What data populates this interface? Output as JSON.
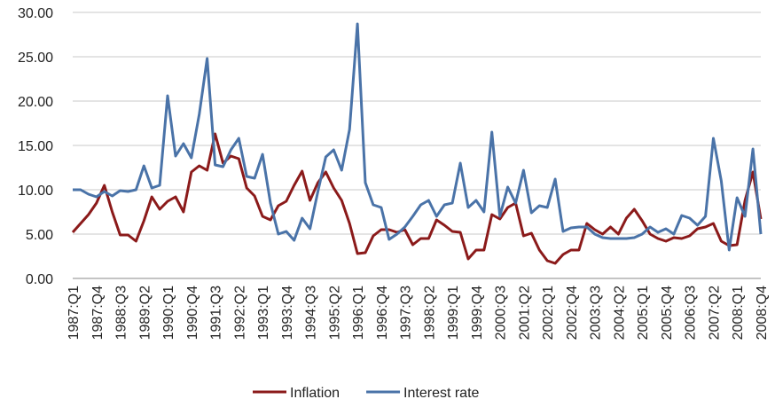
{
  "chart_data": {
    "type": "line",
    "categories": [
      "1987:Q1",
      null,
      null,
      "1987:Q4",
      null,
      null,
      "1988:Q3",
      null,
      null,
      "1989:Q2",
      null,
      null,
      "1990:Q1",
      null,
      null,
      "1990:Q4",
      null,
      null,
      "1991:Q3",
      null,
      null,
      "1992:Q2",
      null,
      null,
      "1993:Q1",
      null,
      null,
      "1993:Q4",
      null,
      null,
      "1994:Q3",
      null,
      null,
      "1995:Q2",
      null,
      null,
      "1996:Q1",
      null,
      null,
      "1996:Q4",
      null,
      null,
      "1997:Q3",
      null,
      null,
      "1998:Q2",
      null,
      null,
      "1999:Q1",
      null,
      null,
      "1999:Q4",
      null,
      null,
      "2000:Q3",
      null,
      null,
      "2001:Q2",
      null,
      null,
      "2002:Q1",
      null,
      null,
      "2002:Q4",
      null,
      null,
      "2003:Q3",
      null,
      null,
      "2004:Q2",
      null,
      null,
      "2005:Q1",
      null,
      null,
      "2005:Q4",
      null,
      null,
      "2006:Q3",
      null,
      null,
      "2007:Q2",
      null,
      null,
      "2008:Q1",
      null,
      null,
      "2008:Q4"
    ],
    "series": [
      {
        "name": "Inflation",
        "color": "#8b1a1a",
        "values": [
          5.2,
          6.2,
          7.2,
          8.5,
          10.5,
          7.5,
          4.9,
          4.9,
          4.2,
          6.5,
          9.2,
          7.8,
          8.7,
          9.2,
          7.5,
          12.0,
          12.7,
          12.2,
          16.3,
          13.0,
          13.8,
          13.5,
          10.2,
          9.3,
          7.0,
          6.6,
          8.2,
          8.7,
          10.5,
          12.1,
          8.8,
          10.8,
          12.0,
          10.2,
          8.8,
          6.2,
          2.8,
          2.9,
          4.8,
          5.5,
          5.5,
          5.2,
          5.5,
          3.8,
          4.5,
          4.5,
          6.6,
          6.0,
          5.3,
          5.2,
          2.2,
          3.2,
          3.2,
          7.2,
          6.7,
          8.0,
          8.5,
          4.8,
          5.1,
          3.2,
          2.0,
          1.7,
          2.7,
          3.2,
          3.2,
          6.2,
          5.5,
          5.0,
          5.8,
          5.0,
          6.8,
          7.8,
          6.5,
          5.0,
          4.5,
          4.2,
          4.6,
          4.5,
          4.8,
          5.6,
          5.8,
          6.2,
          4.2,
          3.7,
          3.8,
          8.8,
          12.0,
          6.7
        ]
      },
      {
        "name": "Interest rate",
        "color": "#4a73a8",
        "values": [
          10.0,
          10.0,
          9.5,
          9.2,
          9.8,
          9.3,
          9.9,
          9.8,
          10.0,
          12.7,
          10.2,
          10.5,
          20.6,
          13.8,
          15.2,
          13.6,
          18.5,
          24.8,
          12.8,
          12.6,
          14.5,
          15.8,
          11.5,
          11.3,
          14.0,
          8.5,
          5.0,
          5.3,
          4.3,
          6.8,
          5.6,
          9.8,
          13.7,
          14.5,
          12.2,
          16.8,
          28.7,
          10.8,
          8.3,
          8.0,
          4.4,
          5.0,
          5.8,
          7.0,
          8.3,
          8.8,
          7.0,
          8.3,
          8.5,
          13.0,
          8.0,
          8.8,
          7.5,
          16.5,
          7.0,
          10.3,
          8.5,
          12.2,
          7.4,
          8.2,
          8.0,
          11.2,
          5.3,
          5.7,
          5.8,
          5.8,
          5.0,
          4.6,
          4.5,
          4.5,
          4.5,
          4.6,
          5.0,
          5.8,
          5.2,
          5.6,
          5.0,
          7.1,
          6.8,
          6.0,
          7.0,
          15.8,
          11.0,
          3.2,
          9.1,
          7.0,
          14.6,
          5.0
        ]
      }
    ],
    "ylim": [
      0,
      30
    ],
    "yticks": [
      {
        "value": 0,
        "label": "0.00"
      },
      {
        "value": 5,
        "label": "5.00"
      },
      {
        "value": 10,
        "label": "10.00"
      },
      {
        "value": 15,
        "label": "15.00"
      },
      {
        "value": 20,
        "label": "20.00"
      },
      {
        "value": 25,
        "label": "25.00"
      },
      {
        "value": 30,
        "label": "30.00"
      }
    ],
    "grid": true,
    "legend": "bottom"
  }
}
